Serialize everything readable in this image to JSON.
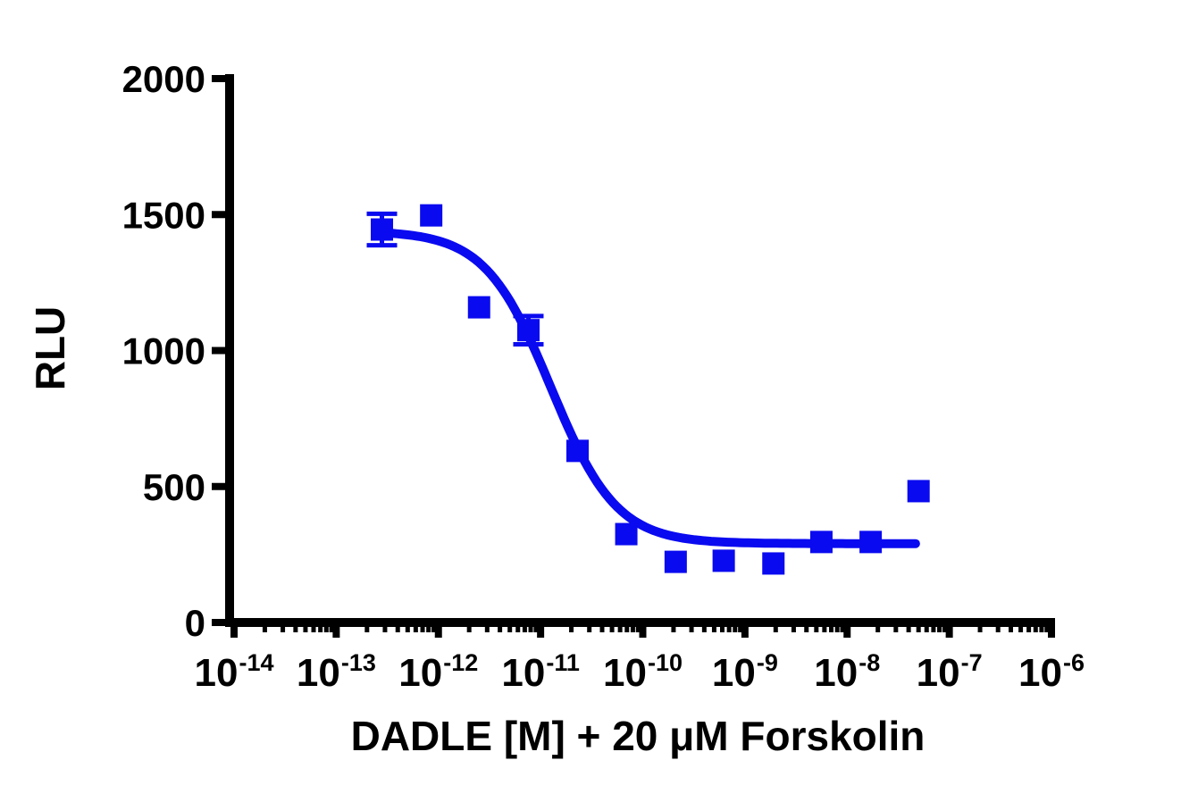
{
  "figure": {
    "background_color": "#ffffff",
    "accent_color": "#0a0af0",
    "axis_color": "#000000"
  },
  "chart_data": {
    "type": "scatter",
    "title": "",
    "xlabel": "DADLE [M] + 20 μM Forskolin",
    "ylabel": "RLU",
    "x_scale": "log",
    "x_tick_base": "10",
    "x_tick_exponents": [
      "-14",
      "-13",
      "-12",
      "-11",
      "-10",
      "-9",
      "-8",
      "-7",
      "-6"
    ],
    "xlim_log": [
      -14,
      -6
    ],
    "y_ticks": [
      "2000",
      "1500",
      "1000",
      "500",
      "0"
    ],
    "ylim": [
      0,
      2000
    ],
    "grid": false,
    "legend": "none",
    "series": [
      {
        "name": "DADLE + 20 μM Forskolin",
        "color": "#0a0af0",
        "marker": "square",
        "marker_size_px": 25,
        "points": [
          {
            "conc_M": 2.8e-13,
            "rlu": 1445,
            "err": 58
          },
          {
            "conc_M": 8.5e-13,
            "rlu": 1497,
            "err": 0
          },
          {
            "conc_M": 2.5e-12,
            "rlu": 1159,
            "err": 0
          },
          {
            "conc_M": 7.6e-12,
            "rlu": 1075,
            "err": 52
          },
          {
            "conc_M": 2.3e-11,
            "rlu": 631,
            "err": 0
          },
          {
            "conc_M": 6.9e-11,
            "rlu": 325,
            "err": 0
          },
          {
            "conc_M": 2.1e-10,
            "rlu": 223,
            "err": 0
          },
          {
            "conc_M": 6.2e-10,
            "rlu": 227,
            "err": 0
          },
          {
            "conc_M": 1.9e-09,
            "rlu": 217,
            "err": 0
          },
          {
            "conc_M": 5.6e-09,
            "rlu": 296,
            "err": 0
          },
          {
            "conc_M": 1.7e-08,
            "rlu": 296,
            "err": 0
          },
          {
            "conc_M": 5e-08,
            "rlu": 483,
            "err": 0
          }
        ]
      }
    ],
    "fit_curve": {
      "model": "four-parameter-logistic-inhibition",
      "top_rlu": 1440,
      "bottom_rlu": 290,
      "log_ic50": -10.9,
      "hill_slope": 1.35,
      "x_range_log": [
        -12.57,
        -7.3
      ]
    }
  }
}
